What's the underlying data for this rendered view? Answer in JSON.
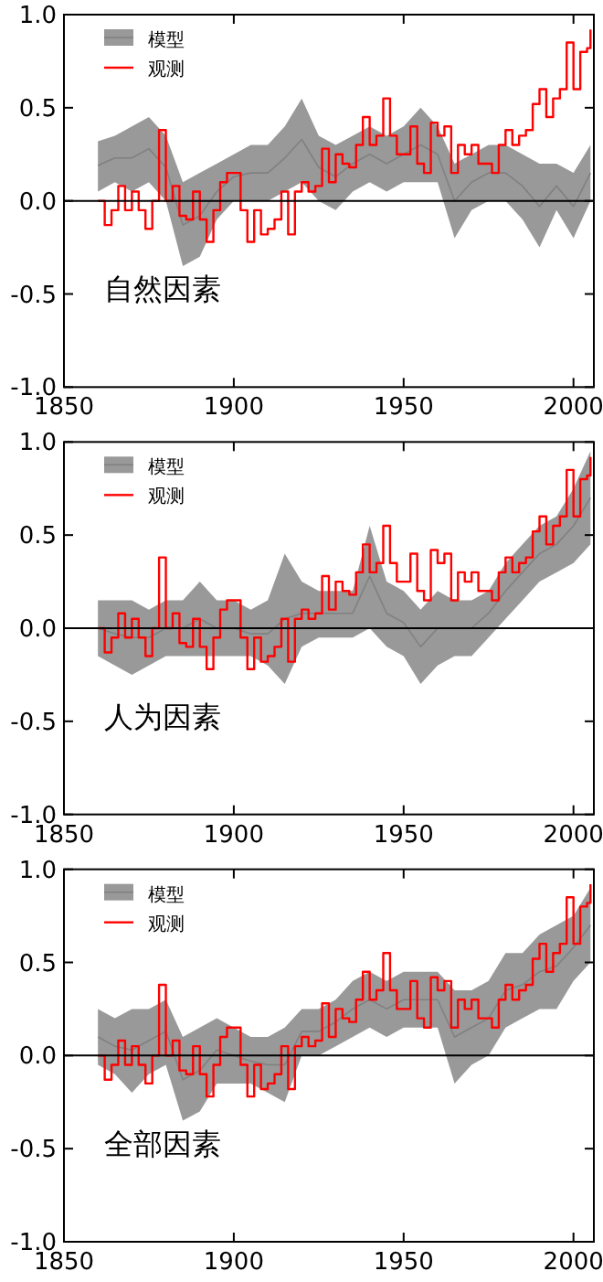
{
  "chart_data": [
    {
      "type": "line",
      "x": [
        1860,
        1865,
        1870,
        1875,
        1880,
        1885,
        1890,
        1895,
        1900,
        1905,
        1910,
        1915,
        1920,
        1925,
        1930,
        1935,
        1940,
        1945,
        1950,
        1955,
        1960,
        1965,
        1970,
        1975,
        1980,
        1985,
        1990,
        1995,
        2000,
        2005
      ],
      "xlim": [
        1850,
        2006
      ],
      "ylim": [
        -1,
        1
      ],
      "xticks": [
        1850,
        1900,
        1950,
        2000
      ],
      "yticks": [
        {
          "value": -1,
          "label": "-1.0"
        },
        {
          "value": -0.5,
          "label": "-0.5"
        },
        {
          "value": 0,
          "label": "0.0"
        },
        {
          "value": 0.5,
          "label": "0.5"
        },
        {
          "value": 1,
          "label": "1.0"
        }
      ],
      "legend": "top left",
      "grid": false,
      "annotations": [
        "自然因素"
      ],
      "ref_lines": [
        {
          "axis": "y",
          "value": 0,
          "color": "#000000"
        }
      ],
      "series": [
        {
          "name": "模型",
          "type": "line",
          "color": "#808080",
          "values": [
            0.19,
            0.23,
            0.23,
            0.28,
            0.18,
            -0.13,
            -0.08,
            0.05,
            0.13,
            0.15,
            0.15,
            0.23,
            0.33,
            0.18,
            0.13,
            0.2,
            0.25,
            0.2,
            0.25,
            0.3,
            0.25,
            0.0,
            0.1,
            0.15,
            0.15,
            0.08,
            -0.03,
            0.08,
            -0.03,
            0.15
          ],
          "lower": [
            0.05,
            0.1,
            0.05,
            0.1,
            0.0,
            -0.35,
            -0.3,
            -0.1,
            0.0,
            0.0,
            0.0,
            0.05,
            0.1,
            0.0,
            -0.05,
            0.05,
            0.1,
            0.05,
            0.1,
            0.1,
            0.1,
            -0.2,
            -0.05,
            0.0,
            0.0,
            -0.1,
            -0.25,
            -0.05,
            -0.2,
            0.0
          ],
          "upper": [
            0.32,
            0.35,
            0.4,
            0.45,
            0.35,
            0.1,
            0.15,
            0.2,
            0.25,
            0.3,
            0.3,
            0.4,
            0.55,
            0.35,
            0.3,
            0.35,
            0.4,
            0.35,
            0.4,
            0.5,
            0.4,
            0.2,
            0.25,
            0.3,
            0.3,
            0.25,
            0.2,
            0.2,
            0.15,
            0.3
          ]
        },
        {
          "name": "观测",
          "type": "step",
          "color": "#ff0000",
          "x": [
            1860,
            1862,
            1864,
            1866,
            1868,
            1870,
            1872,
            1874,
            1876,
            1878,
            1880,
            1882,
            1884,
            1886,
            1888,
            1890,
            1892,
            1894,
            1896,
            1898,
            1900,
            1902,
            1904,
            1906,
            1908,
            1910,
            1912,
            1914,
            1916,
            1918,
            1920,
            1922,
            1924,
            1926,
            1928,
            1930,
            1932,
            1934,
            1936,
            1938,
            1940,
            1942,
            1944,
            1946,
            1948,
            1950,
            1952,
            1954,
            1956,
            1958,
            1960,
            1962,
            1964,
            1966,
            1968,
            1970,
            1972,
            1974,
            1976,
            1978,
            1980,
            1982,
            1984,
            1986,
            1988,
            1990,
            1992,
            1994,
            1996,
            1998,
            2000,
            2002,
            2004,
            2005
          ],
          "values": [
            0.0,
            -0.13,
            -0.05,
            0.08,
            -0.05,
            0.05,
            -0.05,
            -0.15,
            0.0,
            0.38,
            0.0,
            0.08,
            -0.08,
            -0.1,
            0.05,
            -0.1,
            -0.22,
            -0.05,
            0.1,
            0.15,
            0.15,
            -0.05,
            -0.22,
            -0.05,
            -0.18,
            -0.15,
            -0.1,
            0.05,
            -0.18,
            0.05,
            0.1,
            0.05,
            0.08,
            0.28,
            0.1,
            0.25,
            0.2,
            0.18,
            0.3,
            0.45,
            0.3,
            0.35,
            0.55,
            0.35,
            0.25,
            0.25,
            0.4,
            0.2,
            0.15,
            0.42,
            0.35,
            0.4,
            0.15,
            0.3,
            0.25,
            0.3,
            0.2,
            0.2,
            0.15,
            0.3,
            0.38,
            0.3,
            0.35,
            0.38,
            0.52,
            0.6,
            0.45,
            0.55,
            0.6,
            0.85,
            0.6,
            0.8,
            0.82,
            0.92
          ]
        }
      ]
    },
    {
      "type": "line",
      "x": [
        1860,
        1865,
        1870,
        1875,
        1880,
        1885,
        1890,
        1895,
        1900,
        1905,
        1910,
        1915,
        1920,
        1925,
        1930,
        1935,
        1940,
        1945,
        1950,
        1955,
        1960,
        1965,
        1970,
        1975,
        1980,
        1985,
        1990,
        1995,
        2000,
        2005
      ],
      "xlim": [
        1850,
        2006
      ],
      "ylim": [
        -1,
        1
      ],
      "xticks": [
        1850,
        1900,
        1950,
        2000
      ],
      "yticks": [
        {
          "value": -1,
          "label": "-1.0"
        },
        {
          "value": -0.5,
          "label": "-0.5"
        },
        {
          "value": 0,
          "label": "0.0"
        },
        {
          "value": 0.5,
          "label": "0.5"
        },
        {
          "value": 1,
          "label": "1.0"
        }
      ],
      "legend": "top left",
      "grid": false,
      "annotations": [
        "人为因素"
      ],
      "ref_lines": [
        {
          "axis": "y",
          "value": 0,
          "color": "#000000"
        }
      ],
      "series": [
        {
          "name": "模型",
          "type": "line",
          "color": "#808080",
          "values": [
            0.0,
            -0.03,
            -0.05,
            -0.05,
            0.0,
            0.0,
            0.05,
            0.0,
            0.0,
            -0.03,
            -0.03,
            0.05,
            0.08,
            0.08,
            0.08,
            0.08,
            0.28,
            0.08,
            0.03,
            -0.1,
            0.0,
            0.0,
            0.0,
            0.08,
            0.2,
            0.3,
            0.4,
            0.45,
            0.55,
            0.7
          ],
          "lower": [
            -0.15,
            -0.2,
            -0.25,
            -0.2,
            -0.15,
            -0.15,
            -0.15,
            -0.15,
            -0.15,
            -0.15,
            -0.2,
            -0.3,
            -0.1,
            -0.05,
            -0.05,
            -0.05,
            0.0,
            -0.1,
            -0.15,
            -0.3,
            -0.2,
            -0.15,
            -0.15,
            -0.05,
            0.05,
            0.15,
            0.25,
            0.3,
            0.35,
            0.45
          ],
          "upper": [
            0.15,
            0.15,
            0.15,
            0.1,
            0.15,
            0.15,
            0.25,
            0.15,
            0.15,
            0.1,
            0.15,
            0.4,
            0.25,
            0.2,
            0.2,
            0.2,
            0.55,
            0.25,
            0.2,
            0.1,
            0.2,
            0.15,
            0.15,
            0.2,
            0.35,
            0.45,
            0.55,
            0.6,
            0.75,
            0.95
          ]
        },
        {
          "name": "观测",
          "type": "step",
          "color": "#ff0000",
          "x": [
            1860,
            1862,
            1864,
            1866,
            1868,
            1870,
            1872,
            1874,
            1876,
            1878,
            1880,
            1882,
            1884,
            1886,
            1888,
            1890,
            1892,
            1894,
            1896,
            1898,
            1900,
            1902,
            1904,
            1906,
            1908,
            1910,
            1912,
            1914,
            1916,
            1918,
            1920,
            1922,
            1924,
            1926,
            1928,
            1930,
            1932,
            1934,
            1936,
            1938,
            1940,
            1942,
            1944,
            1946,
            1948,
            1950,
            1952,
            1954,
            1956,
            1958,
            1960,
            1962,
            1964,
            1966,
            1968,
            1970,
            1972,
            1974,
            1976,
            1978,
            1980,
            1982,
            1984,
            1986,
            1988,
            1990,
            1992,
            1994,
            1996,
            1998,
            2000,
            2002,
            2004,
            2005
          ],
          "values": [
            0.0,
            -0.13,
            -0.05,
            0.08,
            -0.05,
            0.05,
            -0.05,
            -0.15,
            0.0,
            0.38,
            0.0,
            0.08,
            -0.08,
            -0.1,
            0.05,
            -0.1,
            -0.22,
            -0.05,
            0.1,
            0.15,
            0.15,
            -0.05,
            -0.22,
            -0.05,
            -0.18,
            -0.15,
            -0.1,
            0.05,
            -0.18,
            0.05,
            0.1,
            0.05,
            0.08,
            0.28,
            0.1,
            0.25,
            0.2,
            0.18,
            0.3,
            0.45,
            0.3,
            0.35,
            0.55,
            0.35,
            0.25,
            0.25,
            0.4,
            0.2,
            0.15,
            0.42,
            0.35,
            0.4,
            0.15,
            0.3,
            0.25,
            0.3,
            0.2,
            0.2,
            0.15,
            0.3,
            0.38,
            0.3,
            0.35,
            0.38,
            0.52,
            0.6,
            0.45,
            0.55,
            0.6,
            0.85,
            0.6,
            0.8,
            0.82,
            0.92
          ]
        }
      ]
    },
    {
      "type": "line",
      "x": [
        1860,
        1865,
        1870,
        1875,
        1880,
        1885,
        1890,
        1895,
        1900,
        1905,
        1910,
        1915,
        1920,
        1925,
        1930,
        1935,
        1940,
        1945,
        1950,
        1955,
        1960,
        1965,
        1970,
        1975,
        1980,
        1985,
        1990,
        1995,
        2000,
        2005
      ],
      "xlim": [
        1850,
        2006
      ],
      "ylim": [
        -1,
        1
      ],
      "xticks": [
        1850,
        1900,
        1950,
        2000
      ],
      "yticks": [
        {
          "value": -1,
          "label": "-1.0"
        },
        {
          "value": -0.5,
          "label": "-0.5"
        },
        {
          "value": 0,
          "label": "0.0"
        },
        {
          "value": 0.5,
          "label": "0.5"
        },
        {
          "value": 1,
          "label": "1.0"
        }
      ],
      "legend": "top left",
      "grid": false,
      "annotations": [
        "全部因素"
      ],
      "ref_lines": [
        {
          "axis": "y",
          "value": 0,
          "color": "#000000"
        }
      ],
      "series": [
        {
          "name": "模型",
          "type": "line",
          "color": "#808080",
          "values": [
            0.1,
            0.05,
            0.03,
            0.08,
            0.13,
            -0.13,
            -0.08,
            0.03,
            0.0,
            -0.03,
            -0.05,
            -0.05,
            0.13,
            0.13,
            0.18,
            0.25,
            0.3,
            0.25,
            0.3,
            0.3,
            0.3,
            0.1,
            0.15,
            0.2,
            0.35,
            0.38,
            0.45,
            0.48,
            0.58,
            0.7
          ],
          "lower": [
            -0.05,
            -0.1,
            -0.2,
            -0.1,
            -0.05,
            -0.35,
            -0.3,
            -0.15,
            -0.15,
            -0.15,
            -0.2,
            -0.25,
            0.0,
            0.0,
            0.05,
            0.1,
            0.15,
            0.1,
            0.15,
            0.15,
            0.15,
            -0.15,
            -0.05,
            0.0,
            0.15,
            0.2,
            0.25,
            0.25,
            0.4,
            0.5
          ],
          "upper": [
            0.25,
            0.2,
            0.25,
            0.25,
            0.3,
            0.1,
            0.15,
            0.2,
            0.15,
            0.1,
            0.1,
            0.15,
            0.25,
            0.25,
            0.3,
            0.4,
            0.45,
            0.4,
            0.45,
            0.45,
            0.45,
            0.35,
            0.35,
            0.4,
            0.55,
            0.55,
            0.65,
            0.7,
            0.75,
            0.9
          ]
        },
        {
          "name": "观测",
          "type": "step",
          "color": "#ff0000",
          "x": [
            1860,
            1862,
            1864,
            1866,
            1868,
            1870,
            1872,
            1874,
            1876,
            1878,
            1880,
            1882,
            1884,
            1886,
            1888,
            1890,
            1892,
            1894,
            1896,
            1898,
            1900,
            1902,
            1904,
            1906,
            1908,
            1910,
            1912,
            1914,
            1916,
            1918,
            1920,
            1922,
            1924,
            1926,
            1928,
            1930,
            1932,
            1934,
            1936,
            1938,
            1940,
            1942,
            1944,
            1946,
            1948,
            1950,
            1952,
            1954,
            1956,
            1958,
            1960,
            1962,
            1964,
            1966,
            1968,
            1970,
            1972,
            1974,
            1976,
            1978,
            1980,
            1982,
            1984,
            1986,
            1988,
            1990,
            1992,
            1994,
            1996,
            1998,
            2000,
            2002,
            2004,
            2005
          ],
          "values": [
            0.0,
            -0.13,
            -0.05,
            0.08,
            -0.05,
            0.05,
            -0.05,
            -0.15,
            0.0,
            0.38,
            0.0,
            0.08,
            -0.08,
            -0.1,
            0.05,
            -0.1,
            -0.22,
            -0.05,
            0.1,
            0.15,
            0.15,
            -0.05,
            -0.22,
            -0.05,
            -0.18,
            -0.15,
            -0.1,
            0.05,
            -0.18,
            0.05,
            0.1,
            0.05,
            0.08,
            0.28,
            0.1,
            0.25,
            0.2,
            0.18,
            0.3,
            0.45,
            0.3,
            0.35,
            0.55,
            0.35,
            0.25,
            0.25,
            0.4,
            0.2,
            0.15,
            0.42,
            0.35,
            0.4,
            0.15,
            0.3,
            0.25,
            0.3,
            0.2,
            0.2,
            0.15,
            0.3,
            0.38,
            0.3,
            0.35,
            0.38,
            0.52,
            0.6,
            0.45,
            0.55,
            0.6,
            0.85,
            0.6,
            0.8,
            0.82,
            0.92
          ]
        }
      ]
    }
  ]
}
